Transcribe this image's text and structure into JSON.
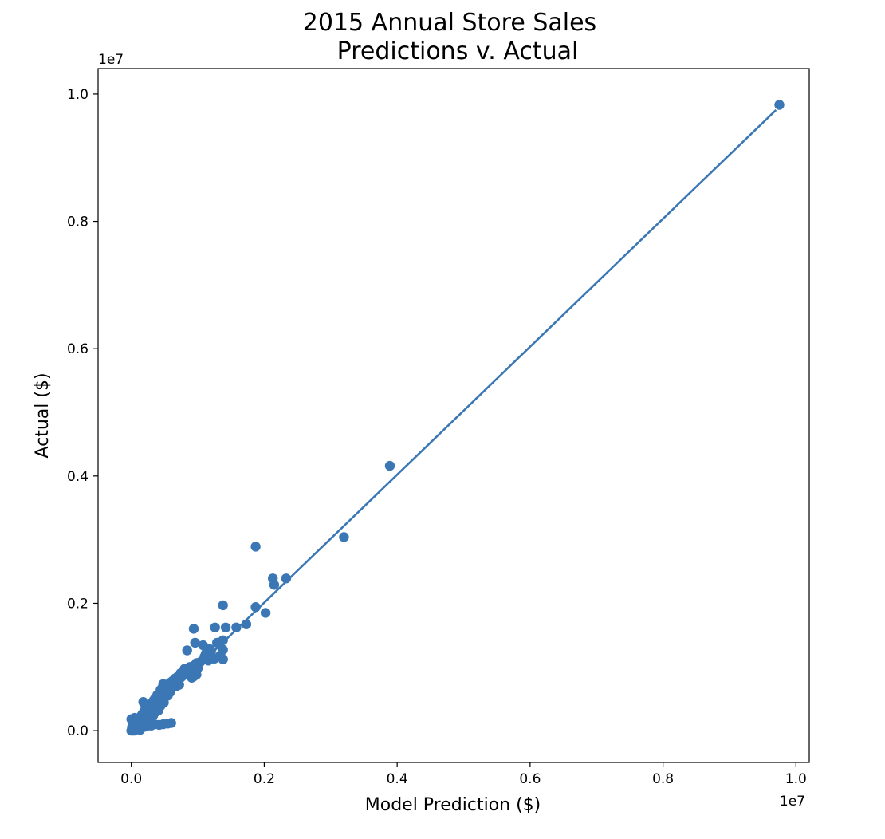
{
  "chart_data": {
    "type": "scatter",
    "title": "2015 Annual Store Sales",
    "subtitle": "Predictions v. Actual",
    "xlabel": "Model Prediction ($)",
    "ylabel": "Actual ($)",
    "x_offset_label": "1e7",
    "y_offset_label": "1e7",
    "xlim": [
      -0.05,
      1.02
    ],
    "ylim": [
      -0.05,
      1.04
    ],
    "xticks": [
      0.0,
      0.2,
      0.4,
      0.6,
      0.8,
      1.0
    ],
    "xtick_labels": [
      "0.0",
      "0.2",
      "0.4",
      "0.6",
      "0.8",
      "1.0"
    ],
    "yticks": [
      0.0,
      0.2,
      0.4,
      0.6,
      0.8,
      1.0
    ],
    "ytick_labels": [
      "0.0",
      "0.2",
      "0.4",
      "0.6",
      "0.8",
      "1.0"
    ],
    "grid": false,
    "color": "#3a77b4",
    "fit_line": {
      "x": [
        0.0,
        0.97
      ],
      "y": [
        0.0,
        0.975
      ]
    },
    "points": [
      [
        0.975,
        0.983
      ],
      [
        0.389,
        0.416
      ],
      [
        0.32,
        0.304
      ],
      [
        0.187,
        0.289
      ],
      [
        0.233,
        0.239
      ],
      [
        0.213,
        0.239
      ],
      [
        0.215,
        0.229
      ],
      [
        0.202,
        0.185
      ],
      [
        0.187,
        0.194
      ],
      [
        0.138,
        0.197
      ],
      [
        0.173,
        0.167
      ],
      [
        0.158,
        0.162
      ],
      [
        0.142,
        0.162
      ],
      [
        0.126,
        0.162
      ],
      [
        0.094,
        0.16
      ],
      [
        0.138,
        0.142
      ],
      [
        0.129,
        0.138
      ],
      [
        0.096,
        0.138
      ],
      [
        0.108,
        0.134
      ],
      [
        0.138,
        0.127
      ],
      [
        0.12,
        0.124
      ],
      [
        0.084,
        0.126
      ],
      [
        0.112,
        0.121
      ],
      [
        0.134,
        0.118
      ],
      [
        0.138,
        0.112
      ],
      [
        0.125,
        0.113
      ],
      [
        0.116,
        0.11
      ],
      [
        0.104,
        0.108
      ],
      [
        0.098,
        0.106
      ],
      [
        0.094,
        0.102
      ],
      [
        0.088,
        0.1
      ],
      [
        0.08,
        0.097
      ],
      [
        0.087,
        0.092
      ],
      [
        0.094,
        0.085
      ],
      [
        0.098,
        0.088
      ],
      [
        0.091,
        0.083
      ],
      [
        0.074,
        0.09
      ],
      [
        0.07,
        0.085
      ],
      [
        0.066,
        0.082
      ],
      [
        0.062,
        0.078
      ],
      [
        0.058,
        0.075
      ],
      [
        0.055,
        0.072
      ],
      [
        0.052,
        0.07
      ],
      [
        0.048,
        0.073
      ],
      [
        0.047,
        0.068
      ],
      [
        0.044,
        0.064
      ],
      [
        0.05,
        0.06
      ],
      [
        0.064,
        0.074
      ],
      [
        0.068,
        0.07
      ],
      [
        0.072,
        0.072
      ],
      [
        0.06,
        0.066
      ],
      [
        0.058,
        0.06
      ],
      [
        0.055,
        0.055
      ],
      [
        0.05,
        0.055
      ],
      [
        0.046,
        0.05
      ],
      [
        0.043,
        0.052
      ],
      [
        0.04,
        0.046
      ],
      [
        0.036,
        0.044
      ],
      [
        0.035,
        0.04
      ],
      [
        0.032,
        0.038
      ],
      [
        0.03,
        0.035
      ],
      [
        0.028,
        0.031
      ],
      [
        0.025,
        0.028
      ],
      [
        0.022,
        0.026
      ],
      [
        0.02,
        0.022
      ],
      [
        0.018,
        0.02
      ],
      [
        0.016,
        0.018
      ],
      [
        0.014,
        0.015
      ],
      [
        0.012,
        0.012
      ],
      [
        0.01,
        0.01
      ],
      [
        0.008,
        0.008
      ],
      [
        0.006,
        0.006
      ],
      [
        0.004,
        0.004
      ],
      [
        0.002,
        0.002
      ],
      [
        0.0,
        0.0
      ],
      [
        0.0,
        0.018
      ],
      [
        0.005,
        0.02
      ],
      [
        0.01,
        0.018
      ],
      [
        0.018,
        0.045
      ],
      [
        0.021,
        0.04
      ],
      [
        0.024,
        0.018
      ],
      [
        0.03,
        0.02
      ],
      [
        0.033,
        0.024
      ],
      [
        0.038,
        0.03
      ],
      [
        0.041,
        0.032
      ],
      [
        0.06,
        0.012
      ],
      [
        0.055,
        0.011
      ],
      [
        0.048,
        0.01
      ],
      [
        0.042,
        0.009
      ],
      [
        0.035,
        0.01
      ],
      [
        0.03,
        0.008
      ],
      [
        0.025,
        0.008
      ],
      [
        0.02,
        0.006
      ],
      [
        0.015,
        0.005
      ],
      [
        0.01,
        0.004
      ],
      [
        0.006,
        0.002
      ],
      [
        0.004,
        0.0
      ],
      [
        0.001,
        0.005
      ],
      [
        0.003,
        0.01
      ],
      [
        0.007,
        0.013
      ],
      [
        0.012,
        0.016
      ],
      [
        0.016,
        0.025
      ],
      [
        0.019,
        0.03
      ],
      [
        0.026,
        0.036
      ],
      [
        0.029,
        0.042
      ],
      [
        0.034,
        0.048
      ],
      [
        0.039,
        0.056
      ],
      [
        0.045,
        0.058
      ],
      [
        0.05,
        0.063
      ],
      [
        0.056,
        0.066
      ],
      [
        0.061,
        0.069
      ],
      [
        0.067,
        0.079
      ],
      [
        0.071,
        0.082
      ],
      [
        0.076,
        0.087
      ],
      [
        0.082,
        0.092
      ],
      [
        0.085,
        0.096
      ],
      [
        0.09,
        0.094
      ],
      [
        0.1,
        0.098
      ],
      [
        0.11,
        0.116
      ],
      [
        0.118,
        0.128
      ],
      [
        0.013,
        0.001
      ],
      [
        0.008,
        0.003
      ],
      [
        0.002,
        0.014
      ],
      [
        0.017,
        0.01
      ],
      [
        0.022,
        0.014
      ],
      [
        0.027,
        0.022
      ],
      [
        0.031,
        0.027
      ],
      [
        0.037,
        0.034
      ],
      [
        0.044,
        0.039
      ],
      [
        0.049,
        0.044
      ]
    ]
  }
}
